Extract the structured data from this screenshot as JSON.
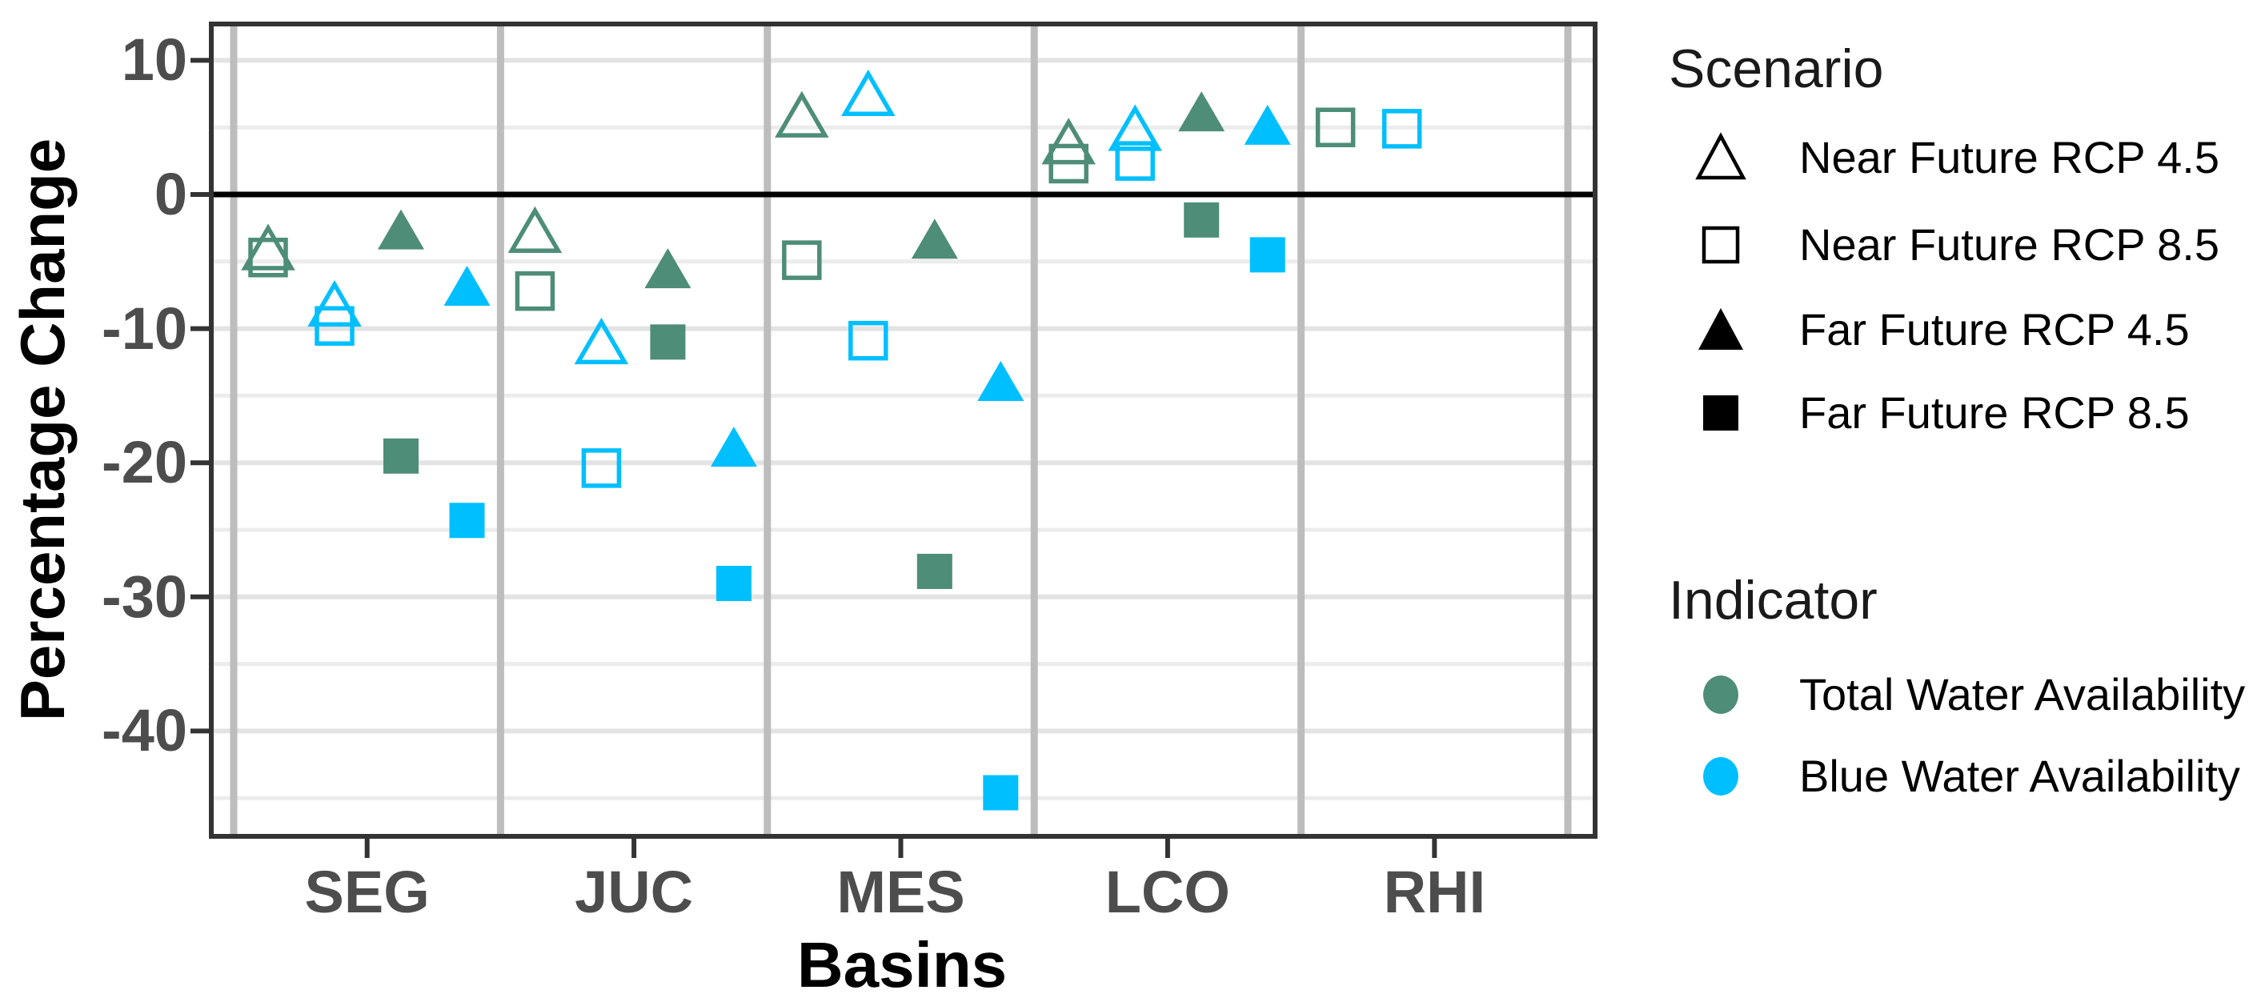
{
  "chart_data": {
    "type": "scatter",
    "title": "",
    "xlabel": "Basins",
    "ylabel": "Percentage Change",
    "categories": [
      "SEG",
      "JUC",
      "MES",
      "LCO",
      "RHI"
    ],
    "y_ticks": [
      10,
      0,
      -10,
      -20,
      -30,
      -40
    ],
    "y_minor_ticks": [
      5,
      -5,
      -15,
      -25,
      -35,
      -45
    ],
    "ylim": [
      -47.9,
      12.7
    ],
    "grid": "horizontal major and minor gridlines on; gray vertical separators between basin categories; heavy black line at y=0",
    "legend_position": "right",
    "zero_line": 0,
    "colors": {
      "total": "#4E8D77",
      "blue": "#00BFFF",
      "axis_text": "#4D4D4D",
      "panel_border": "#333333",
      "separator": "#BDBDBD",
      "grid_major": "#E3E3E3",
      "grid_minor": "#ECECEC",
      "zero_line": "#000000"
    },
    "series_note": "marker: triangle = RCP 4.5, square = RCP 8.5; open = Near Future, filled = Far Future; color: green = Total Water Availability, blue = Blue Water Availability",
    "points": [
      {
        "basin": "SEG",
        "scenario": "Near Future RCP 4.5",
        "indicator": "Total Water Availability",
        "value": -4.0
      },
      {
        "basin": "SEG",
        "scenario": "Near Future RCP 8.5",
        "indicator": "Total Water Availability",
        "value": -4.7
      },
      {
        "basin": "SEG",
        "scenario": "Near Future RCP 4.5",
        "indicator": "Blue Water Availability",
        "value": -8.2
      },
      {
        "basin": "SEG",
        "scenario": "Near Future RCP 8.5",
        "indicator": "Blue Water Availability",
        "value": -9.8
      },
      {
        "basin": "SEG",
        "scenario": "Far Future RCP 4.5",
        "indicator": "Total Water Availability",
        "value": -2.6
      },
      {
        "basin": "SEG",
        "scenario": "Far Future RCP 8.5",
        "indicator": "Total Water Availability",
        "value": -19.5
      },
      {
        "basin": "SEG",
        "scenario": "Far Future RCP 4.5",
        "indicator": "Blue Water Availability",
        "value": -6.8
      },
      {
        "basin": "SEG",
        "scenario": "Far Future RCP 8.5",
        "indicator": "Blue Water Availability",
        "value": -24.3
      },
      {
        "basin": "JUC",
        "scenario": "Near Future RCP 4.5",
        "indicator": "Total Water Availability",
        "value": -2.7
      },
      {
        "basin": "JUC",
        "scenario": "Near Future RCP 8.5",
        "indicator": "Total Water Availability",
        "value": -7.2
      },
      {
        "basin": "JUC",
        "scenario": "Near Future RCP 4.5",
        "indicator": "Blue Water Availability",
        "value": -11.0
      },
      {
        "basin": "JUC",
        "scenario": "Near Future RCP 8.5",
        "indicator": "Blue Water Availability",
        "value": -20.4
      },
      {
        "basin": "JUC",
        "scenario": "Far Future RCP 4.5",
        "indicator": "Total Water Availability",
        "value": -5.5
      },
      {
        "basin": "JUC",
        "scenario": "Far Future RCP 8.5",
        "indicator": "Total Water Availability",
        "value": -11.0
      },
      {
        "basin": "JUC",
        "scenario": "Far Future RCP 4.5",
        "indicator": "Blue Water Availability",
        "value": -18.8
      },
      {
        "basin": "JUC",
        "scenario": "Far Future RCP 8.5",
        "indicator": "Blue Water Availability",
        "value": -29.0
      },
      {
        "basin": "MES",
        "scenario": "Near Future RCP 4.5",
        "indicator": "Total Water Availability",
        "value": 5.9
      },
      {
        "basin": "MES",
        "scenario": "Near Future RCP 8.5",
        "indicator": "Total Water Availability",
        "value": -4.9
      },
      {
        "basin": "MES",
        "scenario": "Near Future RCP 4.5",
        "indicator": "Blue Water Availability",
        "value": 7.5
      },
      {
        "basin": "MES",
        "scenario": "Near Future RCP 8.5",
        "indicator": "Blue Water Availability",
        "value": -10.9
      },
      {
        "basin": "MES",
        "scenario": "Far Future RCP 4.5",
        "indicator": "Total Water Availability",
        "value": -3.3
      },
      {
        "basin": "MES",
        "scenario": "Far Future RCP 8.5",
        "indicator": "Total Water Availability",
        "value": -28.1
      },
      {
        "basin": "MES",
        "scenario": "Far Future RCP 4.5",
        "indicator": "Blue Water Availability",
        "value": -13.9
      },
      {
        "basin": "MES",
        "scenario": "Far Future RCP 8.5",
        "indicator": "Blue Water Availability",
        "value": -44.6
      },
      {
        "basin": "LCO",
        "scenario": "Near Future RCP 4.5",
        "indicator": "Total Water Availability",
        "value": 3.9
      },
      {
        "basin": "LCO",
        "scenario": "Near Future RCP 8.5",
        "indicator": "Total Water Availability",
        "value": 2.3
      },
      {
        "basin": "LCO",
        "scenario": "Near Future RCP 4.5",
        "indicator": "Blue Water Availability",
        "value": 4.9
      },
      {
        "basin": "LCO",
        "scenario": "Near Future RCP 8.5",
        "indicator": "Blue Water Availability",
        "value": 2.5
      },
      {
        "basin": "LCO",
        "scenario": "Far Future RCP 4.5",
        "indicator": "Total Water Availability",
        "value": 6.2
      },
      {
        "basin": "LCO",
        "scenario": "Far Future RCP 8.5",
        "indicator": "Total Water Availability",
        "value": -1.9
      },
      {
        "basin": "LCO",
        "scenario": "Far Future RCP 4.5",
        "indicator": "Blue Water Availability",
        "value": 5.2
      },
      {
        "basin": "LCO",
        "scenario": "Far Future RCP 8.5",
        "indicator": "Blue Water Availability",
        "value": -4.5
      },
      {
        "basin": "RHI",
        "scenario": "Near Future RCP 8.5",
        "indicator": "Total Water Availability",
        "value": 5.0
      },
      {
        "basin": "RHI",
        "scenario": "Near Future RCP 8.5",
        "indicator": "Blue Water Availability",
        "value": 4.9
      }
    ]
  },
  "legend": {
    "scenario_title": "Scenario",
    "scenario_items": [
      {
        "label": "Near Future RCP 4.5",
        "marker": "triangle",
        "filled": false
      },
      {
        "label": "Near Future RCP 8.5",
        "marker": "square",
        "filled": false
      },
      {
        "label": "Far Future RCP 4.5",
        "marker": "triangle",
        "filled": true
      },
      {
        "label": "Far Future RCP 8.5",
        "marker": "square",
        "filled": true
      }
    ],
    "indicator_title": "Indicator",
    "indicator_items": [
      {
        "label": "Total Water Availability",
        "color_key": "total"
      },
      {
        "label": "Blue Water Availability",
        "color_key": "blue"
      }
    ]
  },
  "axes": {
    "y_title": "Percentage Change",
    "x_title": "Basins"
  }
}
